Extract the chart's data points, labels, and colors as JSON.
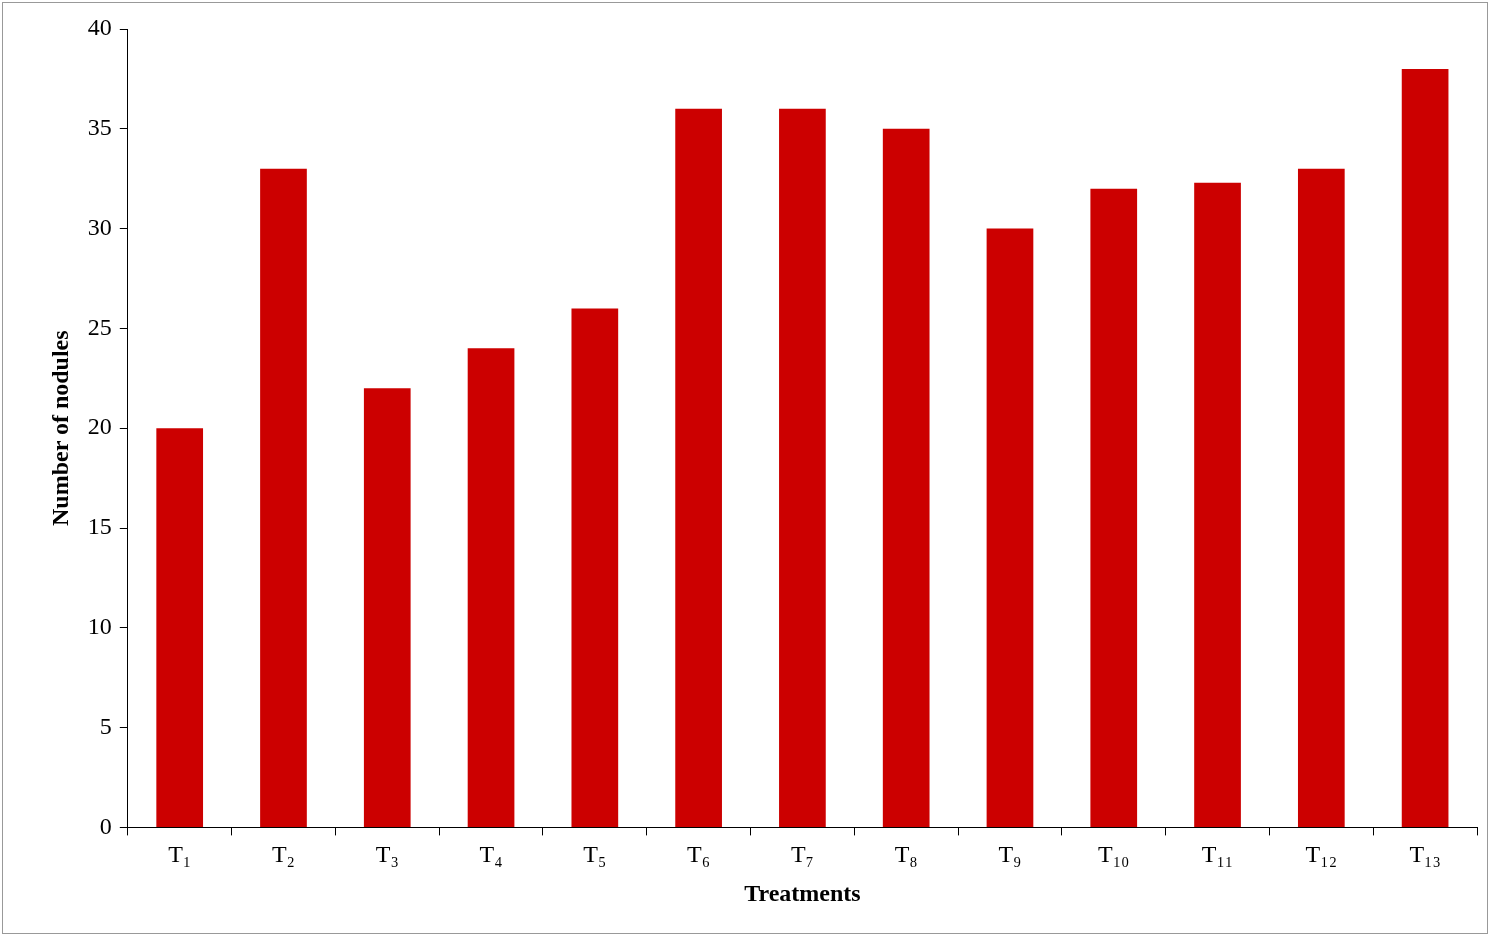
{
  "chart_data": {
    "type": "bar",
    "xlabel": "Treatments",
    "ylabel": "Number of nodules",
    "categories": [
      "T₁",
      "T₂",
      "T₃",
      "T₄",
      "T₅",
      "T₆",
      "T₇",
      "T₈",
      "T₉",
      "T₁₀",
      "T₁₁",
      "T₁₂",
      "T₁₃"
    ],
    "values": [
      20,
      33,
      22,
      24,
      26,
      36,
      36,
      35,
      30,
      32,
      32.3,
      33,
      38
    ],
    "color": "#cc0000",
    "ylim": [
      0,
      40
    ],
    "yticks": [
      0,
      5,
      10,
      15,
      20,
      25,
      30,
      35,
      40
    ],
    "grid": false,
    "legend": false
  }
}
